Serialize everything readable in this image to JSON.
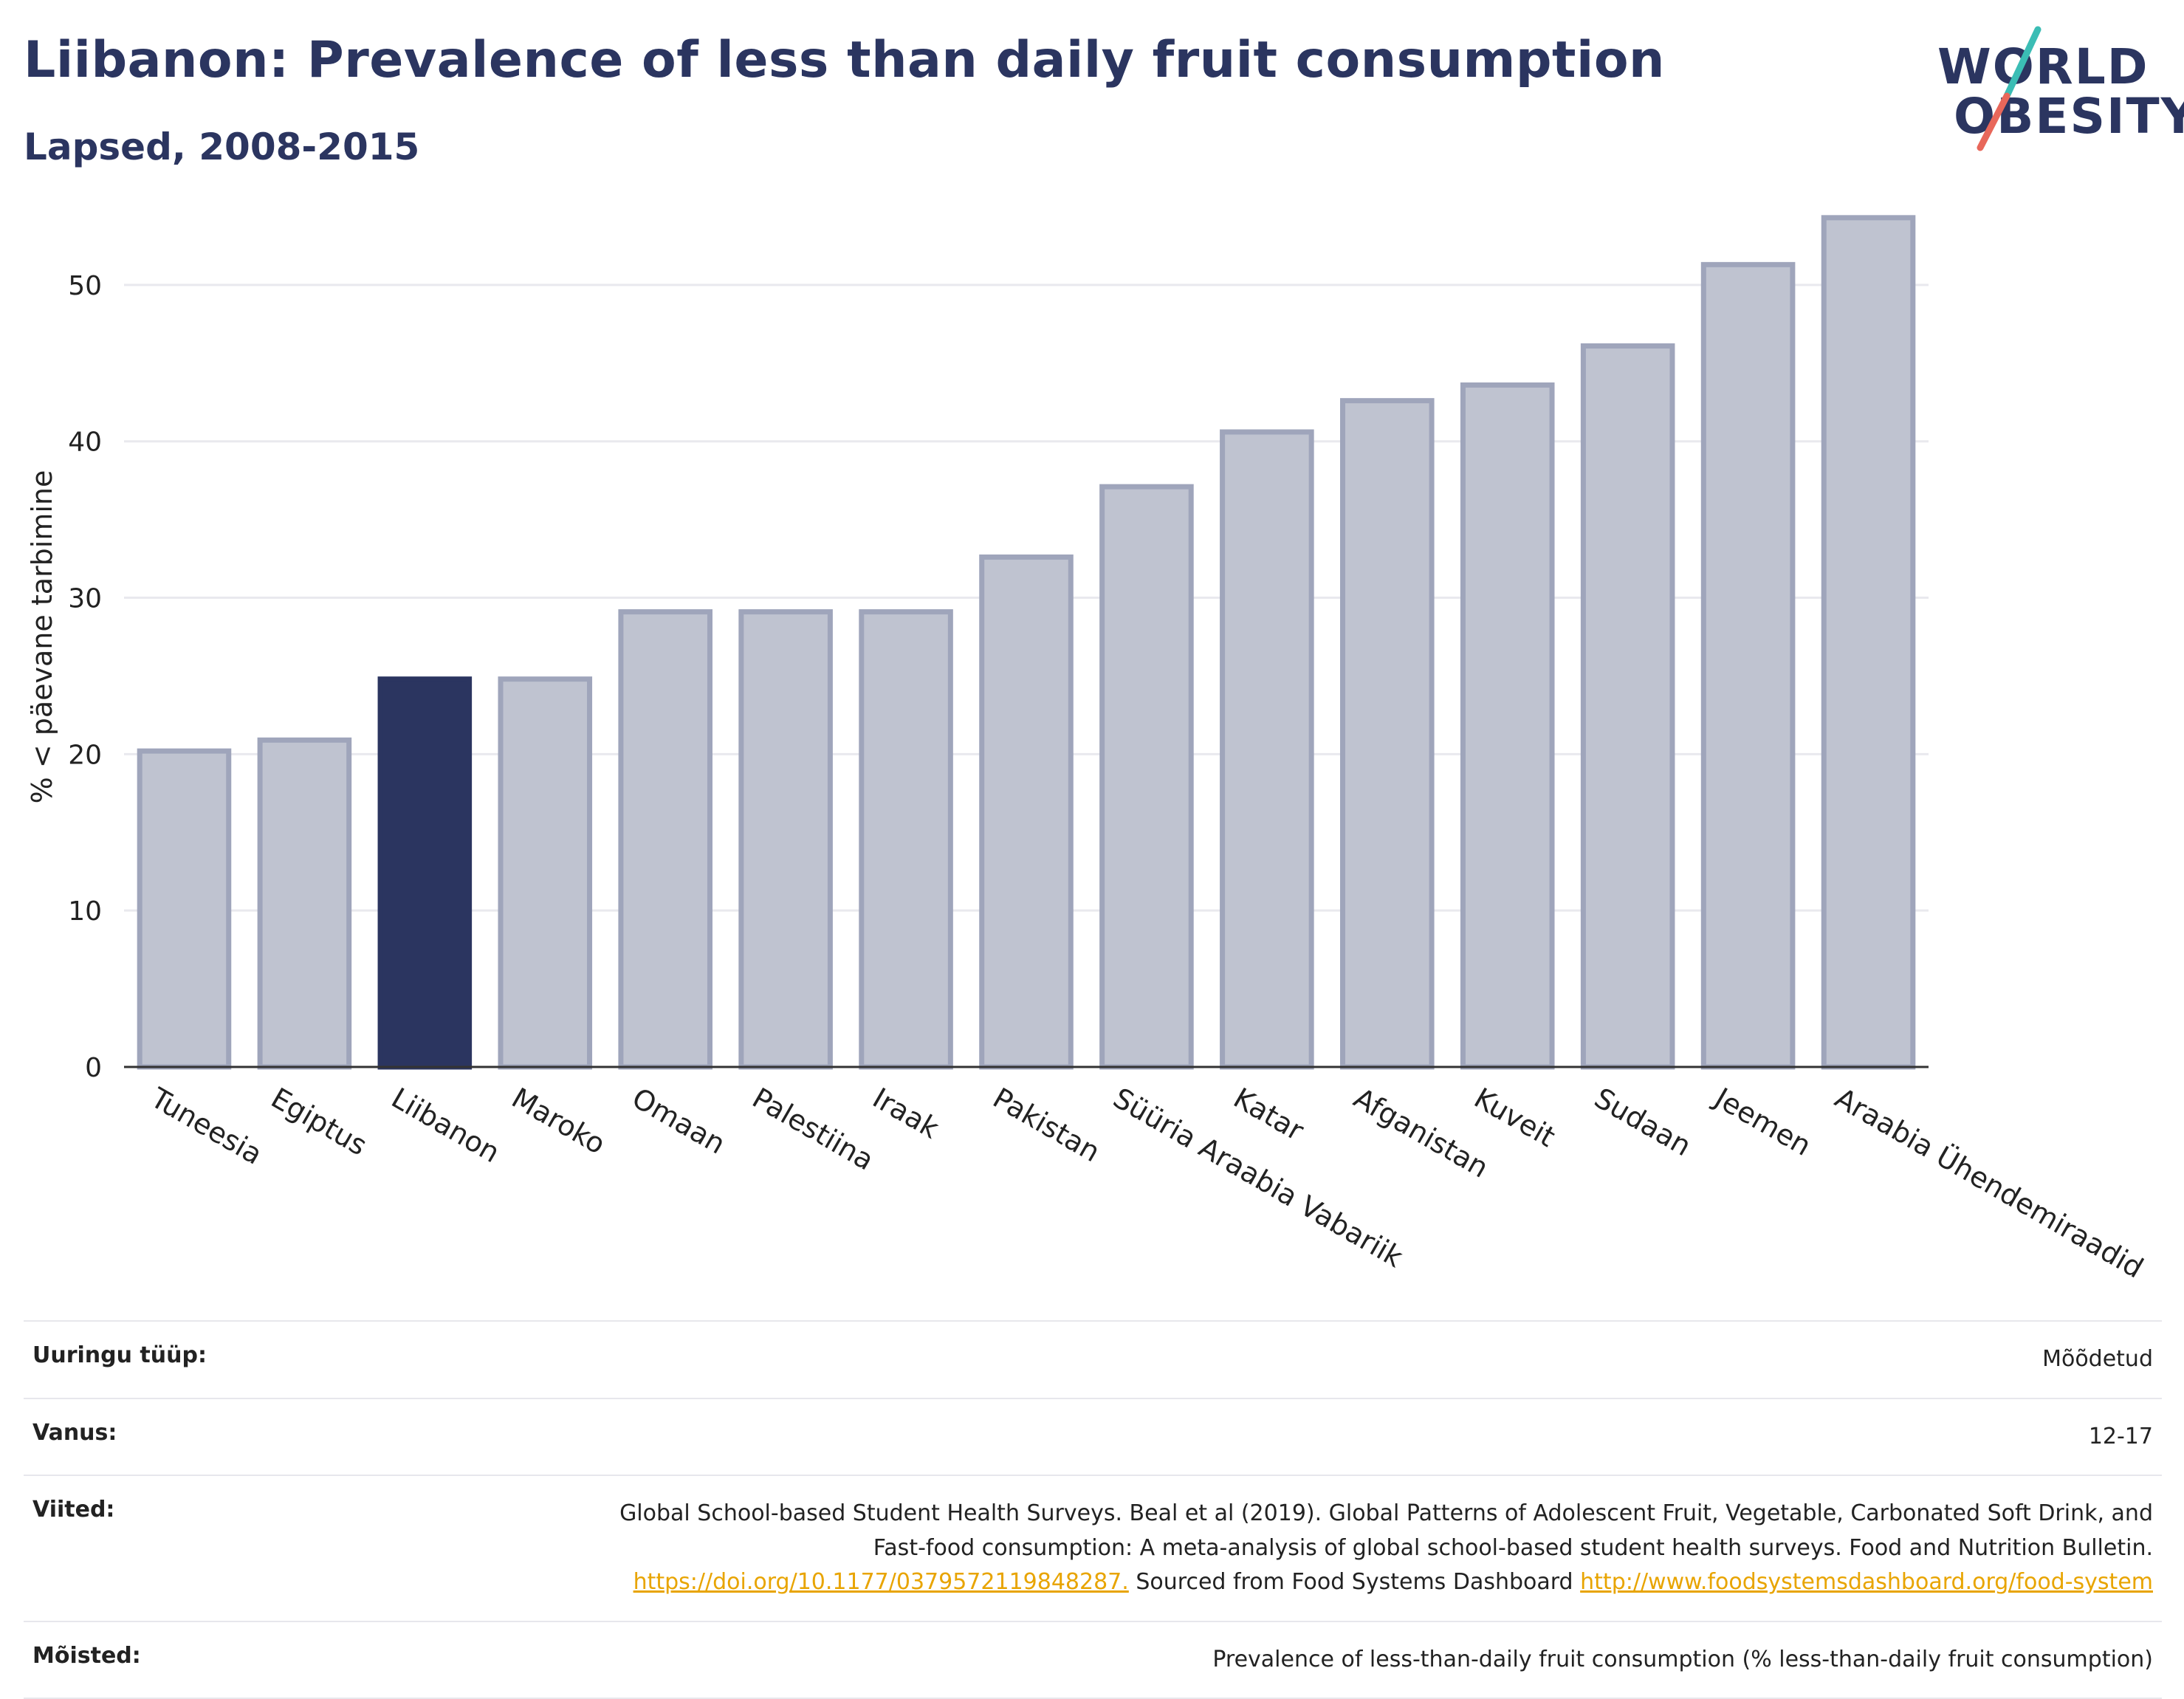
{
  "header": {
    "title": "Liibanon: Prevalence of less than daily fruit consumption",
    "subtitle": "Lapsed, 2008-2015"
  },
  "logo": {
    "line1": "WORLD",
    "line2": "OBESITY",
    "colors": {
      "text": "#2b3560",
      "slash_top": "#3bbdb5",
      "slash_bottom": "#e8675a"
    }
  },
  "colors": {
    "bar": "#bfc3d0",
    "bar_border": "#9fa5bb",
    "highlight": "#2b3560",
    "grid": "#e9e9ee",
    "axis": "#333333"
  },
  "chart_data": {
    "type": "bar",
    "title": "Liibanon: Prevalence of less than daily fruit consumption",
    "subtitle": "Lapsed, 2008-2015",
    "ylabel": "% < päevane tarbimine",
    "xlabel": "",
    "ylim": [
      0,
      55
    ],
    "yticks": [
      0,
      10,
      20,
      30,
      40,
      50
    ],
    "grid": true,
    "highlight": "Liibanon",
    "categories": [
      "Tuneesia",
      "Egiptus",
      "Liibanon",
      "Maroko",
      "Omaan",
      "Palestiina",
      "Iraak",
      "Pakistan",
      "Süüria Araabia Vabariik",
      "Katar",
      "Afganistan",
      "Kuveit",
      "Sudaan",
      "Jeemen",
      "Araabia Ühendemiraadid"
    ],
    "values": [
      20.2,
      20.9,
      24.8,
      24.8,
      29.1,
      29.1,
      29.1,
      32.6,
      37.1,
      40.6,
      42.6,
      43.6,
      46.1,
      51.3,
      54.3
    ]
  },
  "meta": [
    {
      "label": "Uuringu tüüp:",
      "value": "Mõõdetud"
    },
    {
      "label": "Vanus:",
      "value": "12-17"
    },
    {
      "label": "Viited:",
      "text1": "Global School-based Student Health Surveys. Beal et al (2019). Global Patterns of Adolescent Fruit, Vegetable, Carbonated Soft Drink, and Fast-food consumption: A meta-analysis of global school-based student health surveys. Food and Nutrition Bulletin.",
      "link1": "https://doi.org/10.1177/0379572119848287.",
      "text2": "Sourced from Food Systems Dashboard",
      "link2": "http://www.foodsystemsdashboard.org/food-system"
    },
    {
      "label": "Mõisted:",
      "value": "Prevalence of less-than-daily fruit consumption (% less-than-daily fruit consumption)"
    }
  ]
}
